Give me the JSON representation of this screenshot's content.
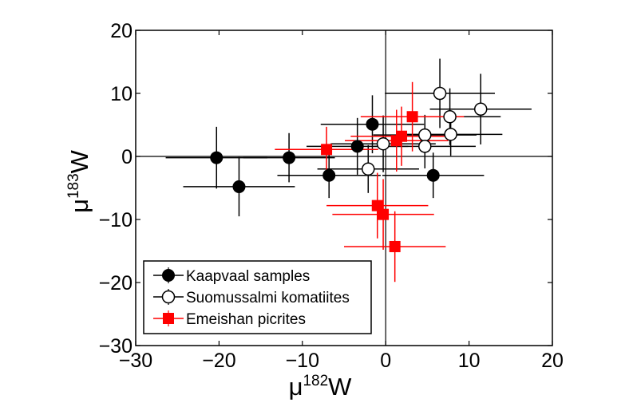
{
  "chart_data": {
    "type": "scatter",
    "title": "",
    "xlabel": "μ182W",
    "xlabel_parts": {
      "prefix": "μ",
      "sup": "182",
      "suffix": "W"
    },
    "ylabel": "μ183W",
    "ylabel_parts": {
      "prefix": "μ",
      "sup": "183",
      "suffix": "W"
    },
    "xlim": [
      -30,
      20
    ],
    "ylim": [
      -30,
      20
    ],
    "xticks": [
      -30,
      -20,
      -10,
      0,
      10,
      20
    ],
    "yticks": [
      -30,
      -20,
      -10,
      0,
      10,
      20
    ],
    "xtick_labels": [
      "−30",
      "−20",
      "−10",
      "0",
      "10",
      "20"
    ],
    "ytick_labels": [
      "−30",
      "−20",
      "−10",
      "0",
      "10",
      "20"
    ],
    "reference_lines": {
      "x": 0,
      "y": 0
    },
    "grid": false,
    "legend_position": "lower-left",
    "series": [
      {
        "name": "Kaapvaal samples",
        "marker": "filled-circle",
        "color": "#000000",
        "points": [
          {
            "x": -20.3,
            "y": -0.2,
            "xerr": 6.1,
            "yerr": 4.9
          },
          {
            "x": -17.6,
            "y": -4.8,
            "xerr": 6.7,
            "yerr": 4.7
          },
          {
            "x": -11.6,
            "y": -0.2,
            "xerr": 5.5,
            "yerr": 3.9
          },
          {
            "x": -6.8,
            "y": -3.0,
            "xerr": 6.2,
            "yerr": 3.6
          },
          {
            "x": -3.4,
            "y": 1.6,
            "xerr": 6.1,
            "yerr": 4.5
          },
          {
            "x": -1.6,
            "y": 5.1,
            "xerr": 6.2,
            "yerr": 4.6
          },
          {
            "x": 5.7,
            "y": -3.0,
            "xerr": 6.1,
            "yerr": 3.6
          }
        ]
      },
      {
        "name": "Suomussalmi komatiites",
        "marker": "open-circle",
        "color": "#000000",
        "points": [
          {
            "x": -2.1,
            "y": -2.0,
            "xerr": 6.1,
            "yerr": 3.8
          },
          {
            "x": -0.3,
            "y": 2.0,
            "xerr": 6.3,
            "yerr": 4.5
          },
          {
            "x": 4.7,
            "y": 3.4,
            "xerr": 6.2,
            "yerr": 3.2
          },
          {
            "x": 4.7,
            "y": 1.6,
            "xerr": 6.1,
            "yerr": 3.5
          },
          {
            "x": 6.5,
            "y": 10.0,
            "xerr": 6.6,
            "yerr": 5.5
          },
          {
            "x": 7.7,
            "y": 6.3,
            "xerr": 6.1,
            "yerr": 4.5
          },
          {
            "x": 7.8,
            "y": 3.5,
            "xerr": 6.2,
            "yerr": 3.4
          },
          {
            "x": 11.4,
            "y": 7.5,
            "xerr": 6.1,
            "yerr": 5.6
          }
        ]
      },
      {
        "name": "Emeishan picrites",
        "marker": "filled-square",
        "color": "#ff0000",
        "points": [
          {
            "x": -7.1,
            "y": 1.1,
            "xerr": 6.2,
            "yerr": 3.6
          },
          {
            "x": -1.0,
            "y": -7.8,
            "xerr": 6.1,
            "yerr": 5.2
          },
          {
            "x": -0.3,
            "y": -9.2,
            "xerr": 6.1,
            "yerr": 5.6
          },
          {
            "x": 1.1,
            "y": -14.3,
            "xerr": 6.1,
            "yerr": 5.6
          },
          {
            "x": 1.3,
            "y": 2.5,
            "xerr": 6.2,
            "yerr": 4.9
          },
          {
            "x": 1.9,
            "y": 3.2,
            "xerr": 6.1,
            "yerr": 4.7
          },
          {
            "x": 3.2,
            "y": 6.3,
            "xerr": 6.2,
            "yerr": 5.5
          }
        ]
      }
    ]
  }
}
